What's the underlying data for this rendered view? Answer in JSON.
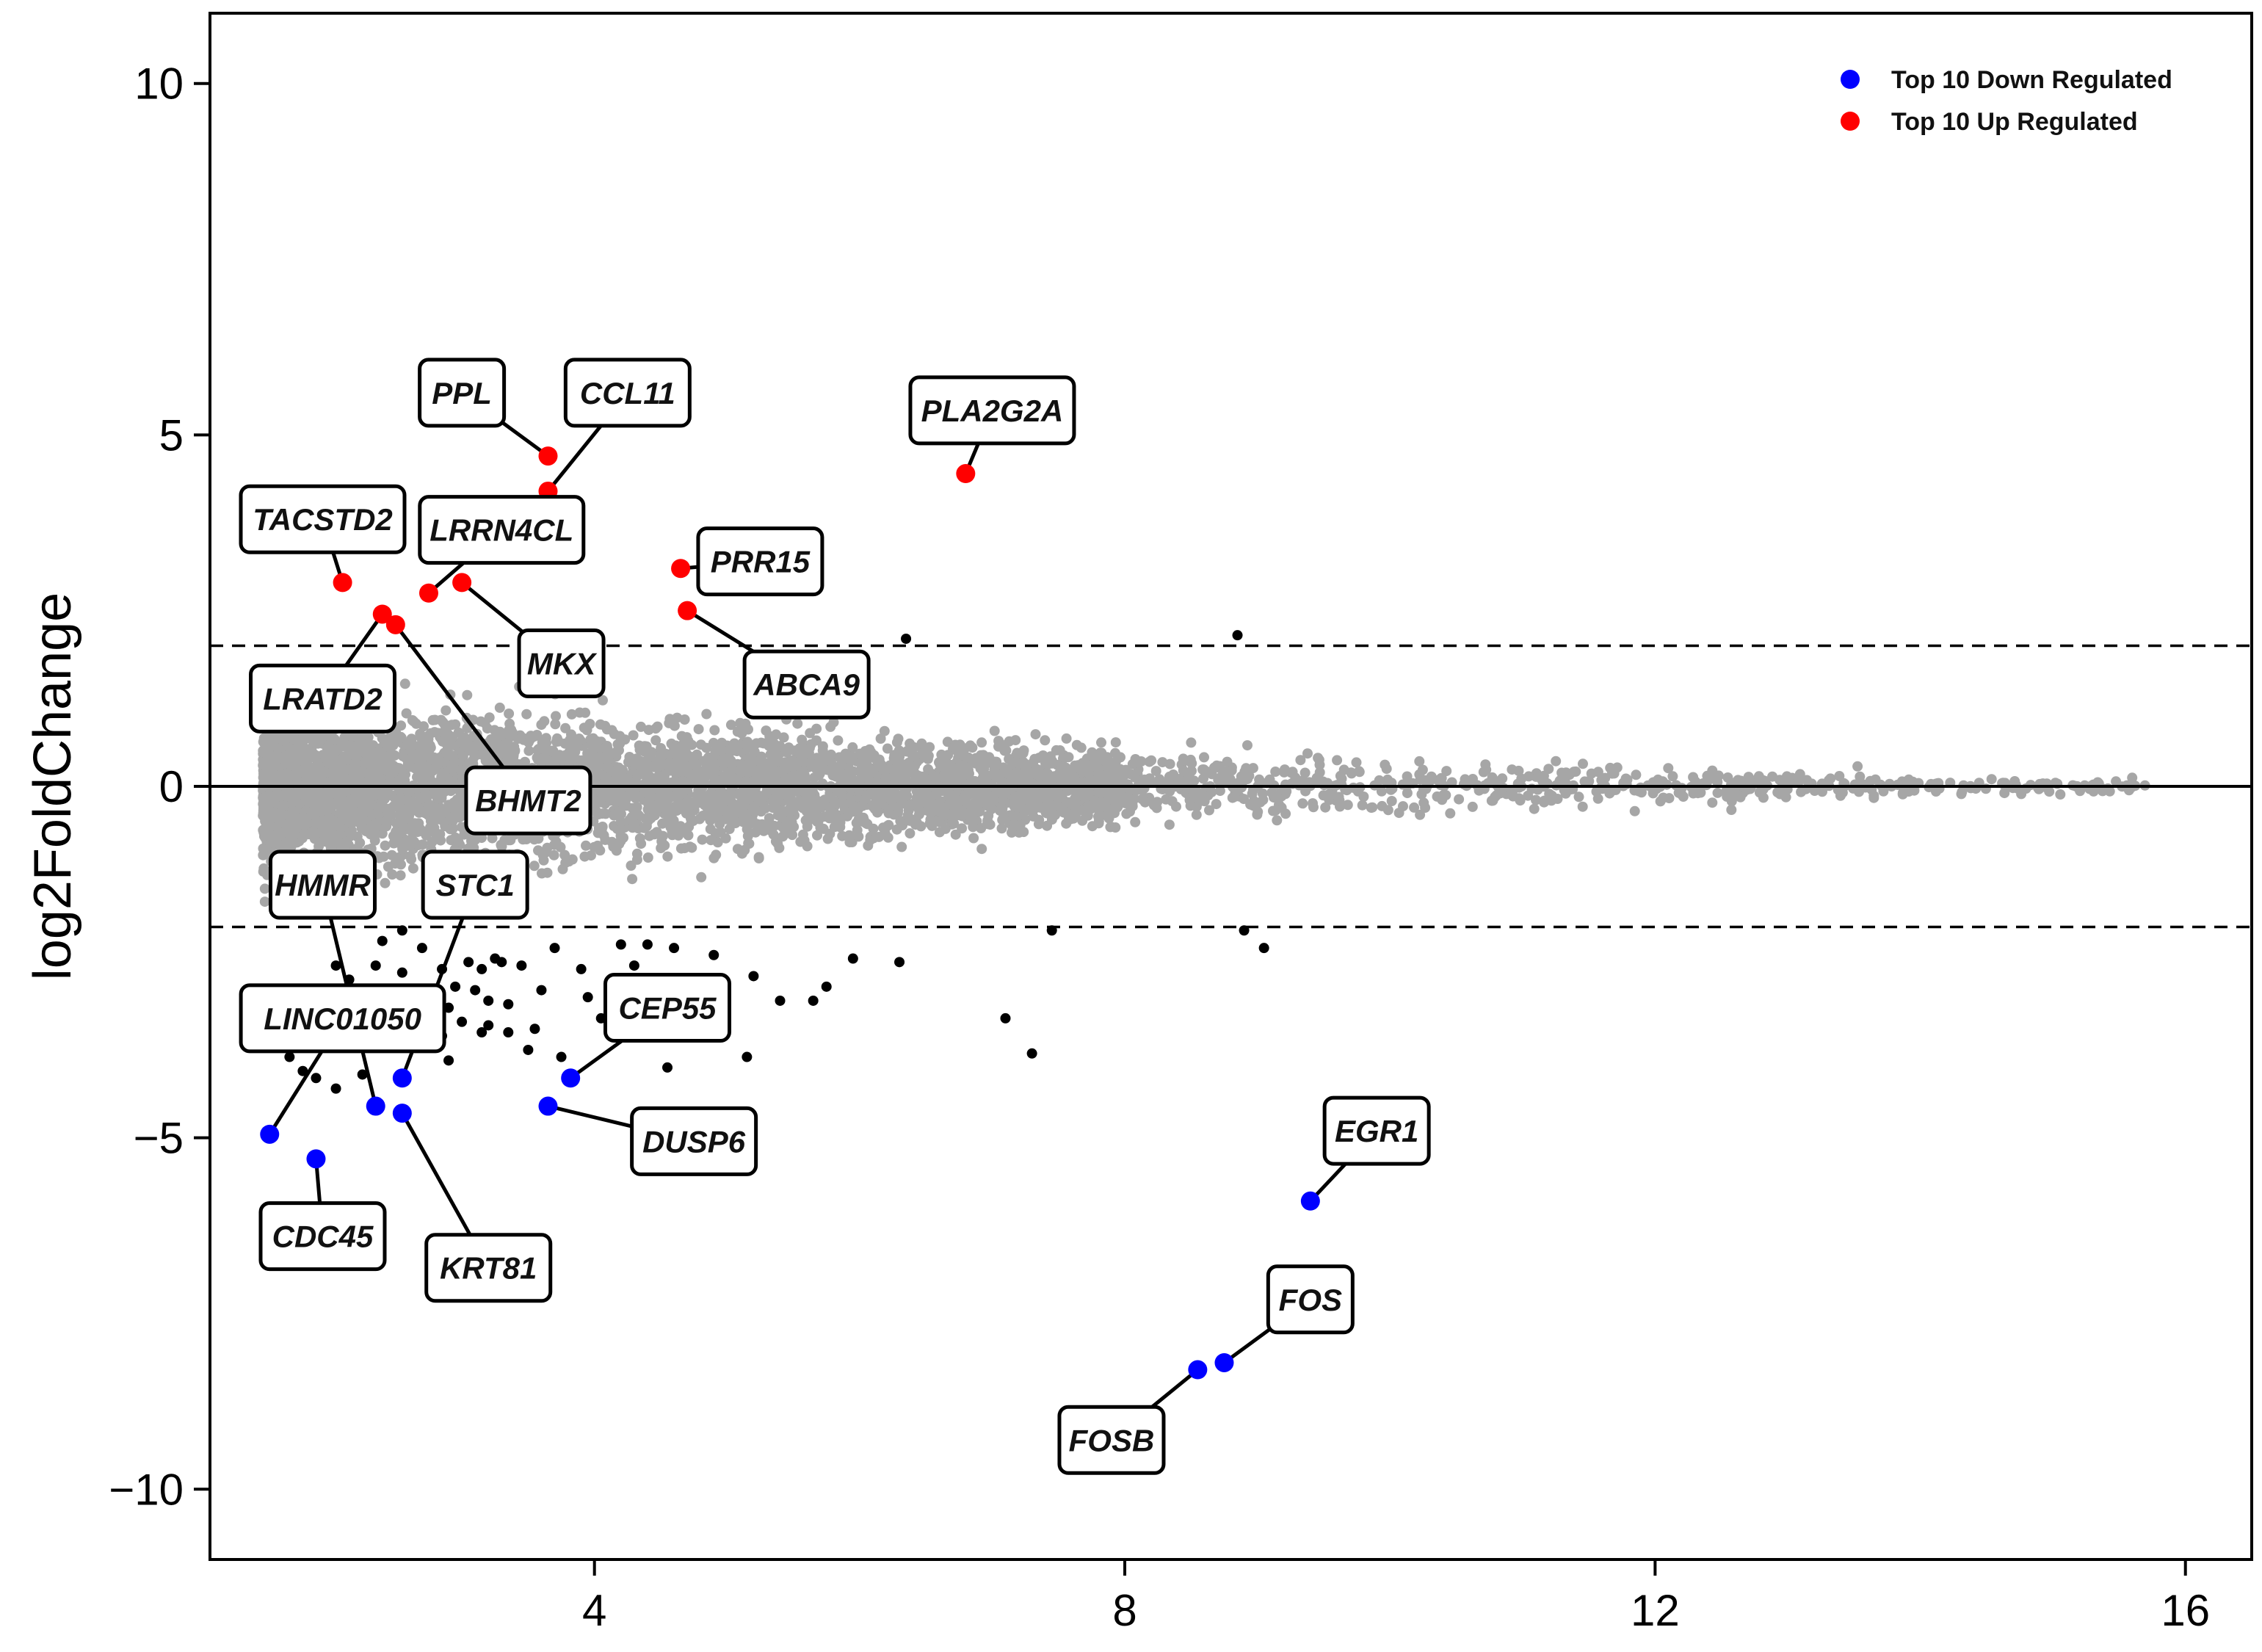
{
  "colors": {
    "background_points": "#a6a6a6",
    "significant_points": "#000000",
    "down": "#0000ff",
    "up": "#ff0000",
    "axis": "#000000"
  },
  "chart_data": {
    "type": "scatter",
    "title": "",
    "xlabel": "",
    "ylabel": "log2FoldChange",
    "xlim": [
      1.1,
      16.5
    ],
    "ylim": [
      -11,
      11
    ],
    "x_ticks": [
      4,
      8,
      12,
      16
    ],
    "y_ticks": [
      10,
      5,
      0,
      -5,
      -10
    ],
    "x_tick_labels": [
      "4",
      "8",
      "12",
      "16"
    ],
    "y_tick_labels": [
      "10",
      "5",
      "0",
      "−5",
      "−10"
    ],
    "reference_lines": {
      "solid": [
        0
      ],
      "dashed": [
        2,
        -2
      ]
    },
    "legend": {
      "position": "top-right",
      "entries": [
        {
          "label": "Top 10 Down Regulated",
          "color": "#0000ff"
        },
        {
          "label": "Top 10 Up Regulated",
          "color": "#ff0000"
        }
      ]
    },
    "series": [
      {
        "name": "Top 10 Up Regulated",
        "color": "#ff0000",
        "points": [
          {
            "gene": "PPL",
            "x": 3.65,
            "y": 4.7,
            "label_x": 3.0,
            "label_y": 5.6
          },
          {
            "gene": "CCL11",
            "x": 3.65,
            "y": 4.2,
            "label_x": 4.25,
            "label_y": 5.6
          },
          {
            "gene": "PLA2G2A",
            "x": 6.8,
            "y": 4.45,
            "label_x": 7.0,
            "label_y": 5.35
          },
          {
            "gene": "TACSTD2",
            "x": 2.1,
            "y": 2.9,
            "label_x": 1.95,
            "label_y": 3.8
          },
          {
            "gene": "LRRN4CL",
            "x": 2.75,
            "y": 2.75,
            "label_x": 3.3,
            "label_y": 3.65
          },
          {
            "gene": "PRR15",
            "x": 4.65,
            "y": 3.1,
            "label_x": 5.25,
            "label_y": 3.2
          },
          {
            "gene": "ABCA9",
            "x": 4.7,
            "y": 2.5,
            "label_x": 5.6,
            "label_y": 1.45
          },
          {
            "gene": "MKX",
            "x": 3.0,
            "y": 2.9,
            "label_x": 3.75,
            "label_y": 1.75
          },
          {
            "gene": "LRATD2",
            "x": 2.4,
            "y": 2.45,
            "label_x": 1.95,
            "label_y": 1.25
          },
          {
            "gene": "BHMT2",
            "x": 2.5,
            "y": 2.3,
            "label_x": 3.5,
            "label_y": -0.2
          }
        ]
      },
      {
        "name": "Top 10 Down Regulated",
        "color": "#0000ff",
        "points": [
          {
            "gene": "EGR1",
            "x": 9.4,
            "y": -5.9,
            "label_x": 9.9,
            "label_y": -4.9
          },
          {
            "gene": "FOS",
            "x": 8.75,
            "y": -8.2,
            "label_x": 9.4,
            "label_y": -7.3
          },
          {
            "gene": "FOSB",
            "x": 8.55,
            "y": -8.3,
            "label_x": 7.9,
            "label_y": -9.3
          },
          {
            "gene": "CEP55",
            "x": 3.82,
            "y": -4.15,
            "label_x": 4.55,
            "label_y": -3.15
          },
          {
            "gene": "DUSP6",
            "x": 3.65,
            "y": -4.55,
            "label_x": 4.75,
            "label_y": -5.05
          },
          {
            "gene": "STC1",
            "x": 2.55,
            "y": -4.15,
            "label_x": 3.1,
            "label_y": -1.4
          },
          {
            "gene": "KRT81",
            "x": 2.55,
            "y": -4.65,
            "label_x": 3.2,
            "label_y": -6.85
          },
          {
            "gene": "HMMR",
            "x": 2.35,
            "y": -4.55,
            "label_x": 1.95,
            "label_y": -1.4
          },
          {
            "gene": "LINC01050",
            "x": 1.55,
            "y": -4.95,
            "label_x": 2.1,
            "label_y": -3.3
          },
          {
            "gene": "CDC45",
            "x": 1.9,
            "y": -5.3,
            "label_x": 1.95,
            "label_y": -6.4
          }
        ]
      }
    ],
    "significant_points": [
      {
        "x": 6.35,
        "y": 2.1
      },
      {
        "x": 8.85,
        "y": 2.15
      },
      {
        "x": 7.45,
        "y": -2.05
      },
      {
        "x": 8.9,
        "y": -2.05
      },
      {
        "x": 9.05,
        "y": -2.3
      },
      {
        "x": 7.1,
        "y": -3.3
      },
      {
        "x": 7.3,
        "y": -3.8
      },
      {
        "x": 4.55,
        "y": -4.0
      },
      {
        "x": 5.15,
        "y": -3.85
      },
      {
        "x": 5.4,
        "y": -3.05
      },
      {
        "x": 5.65,
        "y": -3.05
      },
      {
        "x": 5.75,
        "y": -2.85
      },
      {
        "x": 5.95,
        "y": -2.45
      },
      {
        "x": 6.3,
        "y": -2.5
      },
      {
        "x": 5.2,
        "y": -2.7
      },
      {
        "x": 4.9,
        "y": -2.4
      },
      {
        "x": 4.6,
        "y": -2.3
      },
      {
        "x": 4.4,
        "y": -2.25
      },
      {
        "x": 4.2,
        "y": -2.25
      },
      {
        "x": 4.3,
        "y": -2.55
      },
      {
        "x": 3.9,
        "y": -2.6
      },
      {
        "x": 3.7,
        "y": -2.3
      },
      {
        "x": 3.95,
        "y": -3.0
      },
      {
        "x": 3.6,
        "y": -2.9
      },
      {
        "x": 3.45,
        "y": -2.55
      },
      {
        "x": 3.3,
        "y": -2.5
      },
      {
        "x": 3.15,
        "y": -2.6
      },
      {
        "x": 3.05,
        "y": -2.5
      },
      {
        "x": 3.1,
        "y": -2.9
      },
      {
        "x": 2.95,
        "y": -2.85
      },
      {
        "x": 2.85,
        "y": -2.6
      },
      {
        "x": 2.7,
        "y": -2.3
      },
      {
        "x": 2.55,
        "y": -2.05
      },
      {
        "x": 2.4,
        "y": -2.2
      },
      {
        "x": 2.35,
        "y": -2.55
      },
      {
        "x": 2.55,
        "y": -2.65
      },
      {
        "x": 2.65,
        "y": -2.9
      },
      {
        "x": 2.75,
        "y": -3.1
      },
      {
        "x": 2.9,
        "y": -3.15
      },
      {
        "x": 3.2,
        "y": -3.05
      },
      {
        "x": 3.35,
        "y": -3.1
      },
      {
        "x": 3.0,
        "y": -3.35
      },
      {
        "x": 3.2,
        "y": -3.4
      },
      {
        "x": 3.35,
        "y": -3.5
      },
      {
        "x": 3.15,
        "y": -3.5
      },
      {
        "x": 2.85,
        "y": -3.55
      },
      {
        "x": 2.7,
        "y": -3.7
      },
      {
        "x": 2.9,
        "y": -3.9
      },
      {
        "x": 3.55,
        "y": -3.45
      },
      {
        "x": 3.5,
        "y": -3.75
      },
      {
        "x": 3.75,
        "y": -3.85
      },
      {
        "x": 4.05,
        "y": -3.3
      },
      {
        "x": 2.55,
        "y": -3.4
      },
      {
        "x": 2.45,
        "y": -3.05
      },
      {
        "x": 2.3,
        "y": -3.05
      },
      {
        "x": 2.2,
        "y": -3.25
      },
      {
        "x": 2.15,
        "y": -2.75
      },
      {
        "x": 2.05,
        "y": -2.55
      },
      {
        "x": 1.95,
        "y": -2.9
      },
      {
        "x": 2.05,
        "y": -3.45
      },
      {
        "x": 1.95,
        "y": -3.6
      },
      {
        "x": 1.8,
        "y": -4.05
      },
      {
        "x": 1.9,
        "y": -4.15
      },
      {
        "x": 2.05,
        "y": -4.3
      },
      {
        "x": 2.25,
        "y": -4.1
      },
      {
        "x": 1.7,
        "y": -3.85
      },
      {
        "x": 1.75,
        "y": -3.4
      },
      {
        "x": 1.85,
        "y": -3.15
      },
      {
        "x": 3.25,
        "y": -2.45
      }
    ]
  }
}
